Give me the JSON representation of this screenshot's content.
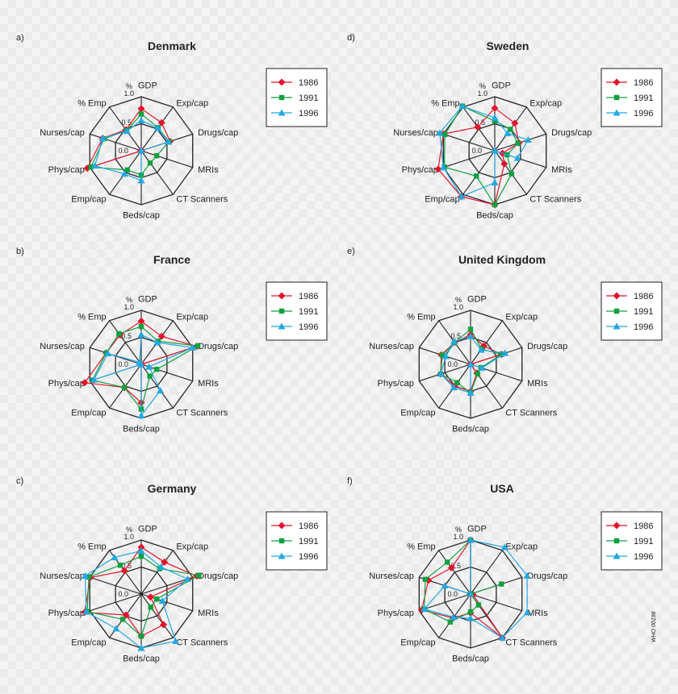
{
  "chart_data": {
    "axes": [
      "GDP",
      "Exp/cap",
      "Drugs/cap",
      "MRIs",
      "CT Scanners",
      "Beds/cap",
      "Emp/cap",
      "Phys/cap",
      "Nurses/cap",
      "% Emp"
    ],
    "tick_labels": {
      "unit": "%",
      "outer": "1.0",
      "mid": "0.5",
      "center": "0.0"
    },
    "series_styles": [
      {
        "name": "1986",
        "color": "#e3132c",
        "marker": "diamond"
      },
      {
        "name": "1991",
        "color": "#10a040",
        "marker": "square"
      },
      {
        "name": "1996",
        "color": "#22a8e2",
        "marker": "triangle"
      }
    ],
    "charts": [
      {
        "panel": "a)",
        "title": "Denmark",
        "type": "radar",
        "range": [
          0,
          1
        ],
        "series": [
          {
            "name": "1986",
            "values": [
              0.78,
              0.64,
              0.56,
              0.0,
              0.0,
              0.0,
              0.0,
              1.05,
              0.75,
              0.48
            ]
          },
          {
            "name": "1991",
            "values": [
              0.68,
              0.53,
              0.54,
              0.3,
              0.28,
              0.45,
              0.44,
              0.98,
              0.72,
              0.46
            ]
          },
          {
            "name": "1996",
            "values": [
              0.56,
              0.52,
              0.53,
              0.0,
              0.0,
              0.55,
              0.53,
              0.9,
              0.75,
              0.45
            ]
          }
        ]
      },
      {
        "panel": "d)",
        "title": "Sweden",
        "type": "radar",
        "range": [
          0,
          1
        ],
        "series": [
          {
            "name": "1986",
            "values": [
              0.79,
              0.63,
              0.47,
              0.15,
              0.3,
              1.0,
              1.05,
              1.1,
              1.0,
              0.54
            ]
          },
          {
            "name": "1991",
            "values": [
              0.55,
              0.49,
              0.45,
              0.24,
              0.53,
              1.0,
              0.58,
              0.98,
              0.97,
              1.02
            ]
          },
          {
            "name": "1996",
            "values": [
              0.61,
              0.4,
              0.65,
              0.44,
              0.0,
              0.59,
              1.05,
              1.0,
              1.07,
              1.02
            ]
          }
        ]
      },
      {
        "panel": "b)",
        "title": "France",
        "type": "radar",
        "range": [
          0,
          1
        ],
        "series": [
          {
            "name": "1986",
            "values": [
              0.8,
              0.64,
              1.08,
              0.0,
              0.0,
              0.71,
              0.53,
              1.1,
              0.68,
              0.67
            ]
          },
          {
            "name": "1991",
            "values": [
              0.7,
              0.53,
              1.1,
              0.3,
              0.27,
              0.83,
              0.53,
              0.95,
              0.68,
              0.7
            ]
          },
          {
            "name": "1996",
            "values": [
              0.55,
              0.5,
              1.0,
              0.15,
              0.6,
              0.95,
              0.0,
              0.92,
              0.65,
              0.05
            ]
          }
        ]
      },
      {
        "panel": "e)",
        "title": "United Kingdom",
        "type": "radar",
        "range": [
          0,
          1
        ],
        "series": [
          {
            "name": "1986",
            "values": [
              0.55,
              0.42,
              0.6,
              0.0,
              0.2,
              0.5,
              0.5,
              0.58,
              0.57,
              0.5
            ]
          },
          {
            "name": "1991",
            "values": [
              0.65,
              0.35,
              0.6,
              0.2,
              0.22,
              0.53,
              0.42,
              0.58,
              0.55,
              0.5
            ]
          },
          {
            "name": "1996",
            "values": [
              0.52,
              0.33,
              0.67,
              0.22,
              0.0,
              0.53,
              0.53,
              0.58,
              0.48,
              0.52
            ]
          }
        ]
      },
      {
        "panel": "c)",
        "title": "Germany",
        "type": "radar",
        "range": [
          0,
          1
        ],
        "series": [
          {
            "name": "1986",
            "values": [
              0.87,
              0.73,
              1.08,
              0.18,
              0.7,
              0.78,
              0.48,
              1.1,
              0.99,
              0.53
            ]
          },
          {
            "name": "1991",
            "values": [
              0.7,
              0.58,
              1.12,
              0.3,
              0.3,
              0.78,
              0.58,
              1.05,
              1.02,
              0.66
            ]
          },
          {
            "name": "1996",
            "values": [
              0.8,
              0.62,
              0.9,
              0.41,
              1.08,
              1.0,
              0.79,
              1.07,
              1.09,
              0.84
            ]
          }
        ]
      },
      {
        "panel": "f)",
        "title": "USA",
        "type": "radar",
        "range": [
          0,
          1
        ],
        "series": [
          {
            "name": "1986",
            "values": [
              1.0,
              0.0,
              0.0,
              0.05,
              1.0,
              0.35,
              0.55,
              0.95,
              0.82,
              0.6
            ]
          },
          {
            "name": "1991",
            "values": [
              1.0,
              0.0,
              0.6,
              0.0,
              0.25,
              0.33,
              0.64,
              0.9,
              0.88,
              0.73
            ]
          },
          {
            "name": "1996",
            "values": [
              1.0,
              1.07,
              1.1,
              1.1,
              1.0,
              0.45,
              0.53,
              0.9,
              0.5,
              0.0
            ]
          }
        ]
      }
    ]
  },
  "stamp": "WHO 00198"
}
